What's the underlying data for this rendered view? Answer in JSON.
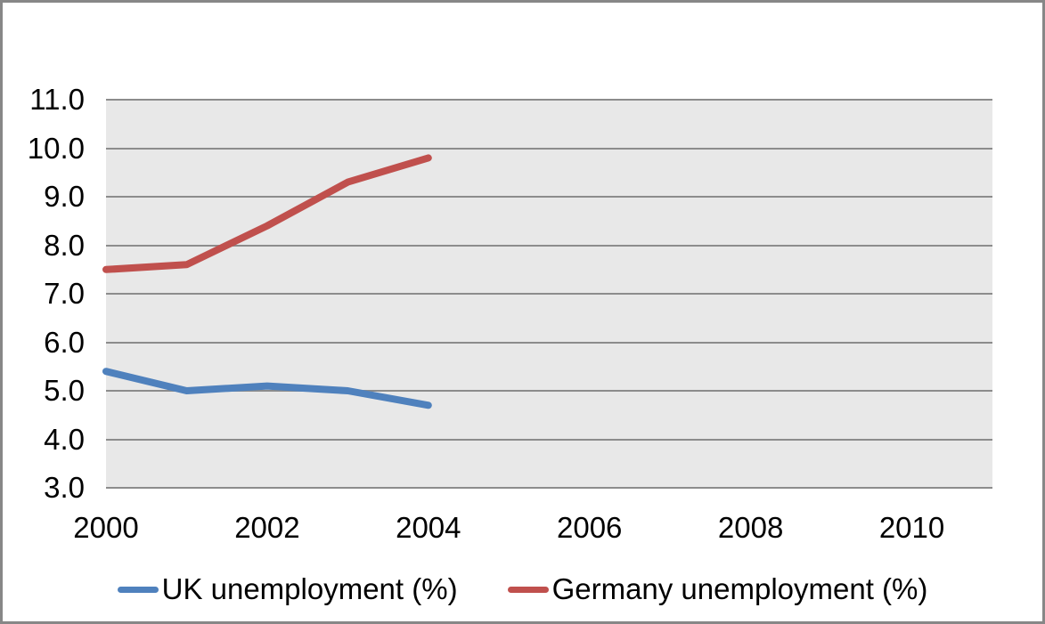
{
  "window": {
    "background": "#ffffff",
    "border_color": "#878787"
  },
  "chart_data": {
    "type": "line",
    "title": "",
    "xlabel": "",
    "ylabel": "",
    "x": [
      2000,
      2001,
      2002,
      2003,
      2004
    ],
    "series": [
      {
        "name": "UK unemployment (%)",
        "color": "#4F81BD",
        "values": [
          5.4,
          5.0,
          5.1,
          5.0,
          4.7
        ]
      },
      {
        "name": "Germany unemployment (%)",
        "color": "#C0504D",
        "values": [
          7.5,
          7.6,
          8.4,
          9.3,
          9.8
        ]
      }
    ],
    "xlim": [
      2000,
      2011
    ],
    "ylim": [
      3,
      11
    ],
    "x_tick_values": [
      2000,
      2002,
      2004,
      2006,
      2008,
      2010
    ],
    "x_tick_labels": [
      "2000",
      "2002",
      "2004",
      "2006",
      "2008",
      "2010"
    ],
    "y_tick_values": [
      11,
      10,
      9,
      8,
      7,
      6,
      5,
      4,
      3
    ],
    "y_tick_labels": [
      "11.0",
      "10.0",
      "9.0",
      "8.0",
      "7.0",
      "6.0",
      "5.0",
      "4.0",
      "3.0"
    ],
    "grid": true,
    "gridline_color": "#8C8C8C",
    "plot_background": "#E8E8E8",
    "line_width": 8,
    "legend_position": "bottom"
  }
}
